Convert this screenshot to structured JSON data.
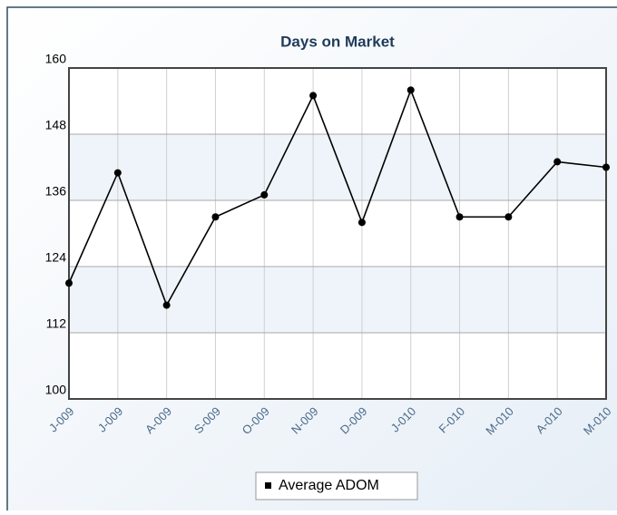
{
  "chart_data": {
    "type": "line",
    "title": "Days on Market",
    "categories": [
      "J-009",
      "J-009",
      "A-009",
      "S-009",
      "O-009",
      "N-009",
      "D-009",
      "J-010",
      "F-010",
      "M-010",
      "A-010",
      "M-010"
    ],
    "series": [
      {
        "name": "Average ADOM",
        "color": "#000000",
        "values": [
          121,
          141,
          117,
          133,
          137,
          155,
          132,
          156,
          133,
          133,
          143,
          142
        ]
      }
    ],
    "ylim": [
      100,
      160
    ],
    "yticks": [
      100,
      112,
      124,
      136,
      148,
      160
    ],
    "grid": true,
    "legend": "bottom"
  }
}
